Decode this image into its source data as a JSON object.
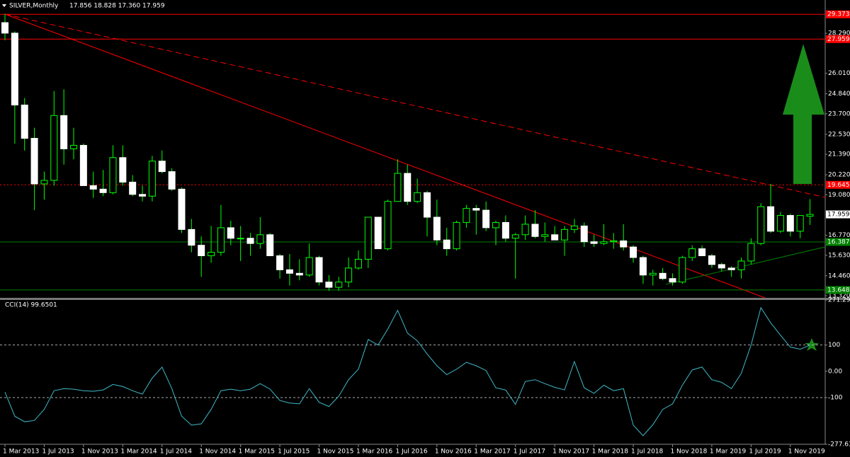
{
  "header": {
    "symbol": "SILVER,Monthly",
    "quote": "17.856 18.828 17.360 17.959"
  },
  "chart_data": [
    {
      "type": "candlestick",
      "up_color": "#00ff00",
      "down_color": "#ffffff",
      "wick_color": "#00ff00",
      "x": [
        "1 Mar 2013",
        null,
        null,
        null,
        "1 Jul 2013",
        null,
        null,
        null,
        "1 Nov 2013",
        null,
        null,
        null,
        "1 Mar 2014",
        null,
        null,
        null,
        "1 Jul 2014",
        null,
        null,
        null,
        "1 Nov 2014",
        null,
        null,
        null,
        "1 Mar 2015",
        null,
        null,
        null,
        "1 Jul 2015",
        null,
        null,
        null,
        "1 Nov 2015",
        null,
        null,
        null,
        "1 Mar 2016",
        null,
        null,
        null,
        "1 Jul 2016",
        null,
        null,
        null,
        "1 Nov 2016",
        null,
        null,
        null,
        "1 Mar 2017",
        null,
        null,
        null,
        "1 Jul 2017",
        null,
        null,
        null,
        "1 Nov 2017",
        null,
        null,
        null,
        "1 Mar 2018",
        null,
        null,
        null,
        "1 Jul 2018",
        null,
        null,
        null,
        "1 Nov 2018",
        null,
        null,
        null,
        "1 Mar 2019",
        null,
        null,
        null,
        "1 Jul 2019",
        null,
        null,
        null,
        "1 Nov 2019",
        null,
        null
      ],
      "ohlc": [
        [
          28.9,
          29.4,
          27.9,
          28.3
        ],
        [
          28.3,
          28.4,
          22.0,
          24.2
        ],
        [
          24.2,
          24.6,
          21.6,
          22.3
        ],
        [
          22.3,
          22.9,
          18.2,
          19.7
        ],
        [
          19.7,
          20.4,
          18.8,
          19.9
        ],
        [
          19.9,
          25.0,
          19.6,
          23.6
        ],
        [
          23.6,
          25.1,
          20.8,
          21.7
        ],
        [
          21.7,
          22.9,
          21.1,
          21.9
        ],
        [
          21.9,
          22.0,
          19.6,
          19.6
        ],
        [
          19.6,
          20.4,
          18.9,
          19.4
        ],
        [
          19.4,
          20.5,
          19.0,
          19.2
        ],
        [
          19.2,
          21.9,
          19.1,
          21.2
        ],
        [
          21.2,
          21.9,
          19.6,
          19.8
        ],
        [
          19.8,
          20.2,
          19.0,
          19.1
        ],
        [
          19.1,
          19.6,
          18.7,
          19.0
        ],
        [
          19.0,
          21.3,
          18.7,
          21.0
        ],
        [
          21.0,
          21.6,
          20.3,
          20.4
        ],
        [
          20.4,
          20.6,
          19.3,
          19.4
        ],
        [
          19.4,
          19.5,
          16.9,
          17.1
        ],
        [
          17.1,
          17.7,
          15.8,
          16.2
        ],
        [
          16.2,
          16.7,
          14.4,
          15.6
        ],
        [
          15.6,
          17.3,
          15.2,
          15.8
        ],
        [
          15.8,
          18.5,
          15.6,
          17.2
        ],
        [
          17.2,
          17.6,
          16.2,
          16.6
        ],
        [
          16.6,
          17.3,
          15.3,
          16.6
        ],
        [
          16.6,
          16.9,
          15.6,
          16.3
        ],
        [
          16.3,
          17.8,
          16.0,
          16.8
        ],
        [
          16.8,
          16.9,
          15.6,
          15.6
        ],
        [
          15.6,
          15.7,
          14.3,
          14.8
        ],
        [
          14.8,
          15.7,
          13.9,
          14.6
        ],
        [
          14.6,
          15.4,
          14.2,
          14.5
        ],
        [
          14.5,
          16.3,
          14.4,
          15.5
        ],
        [
          15.5,
          15.6,
          13.9,
          14.1
        ],
        [
          14.1,
          14.5,
          13.6,
          13.8
        ],
        [
          13.8,
          14.4,
          13.6,
          14.1
        ],
        [
          14.1,
          15.5,
          13.8,
          14.9
        ],
        [
          14.9,
          15.9,
          14.8,
          15.4
        ],
        [
          15.4,
          17.8,
          14.9,
          17.8
        ],
        [
          17.8,
          17.8,
          16.0,
          16.0
        ],
        [
          16.0,
          18.8,
          15.9,
          18.7
        ],
        [
          18.7,
          21.1,
          18.7,
          20.3
        ],
        [
          20.3,
          20.8,
          18.5,
          18.7
        ],
        [
          18.7,
          20.0,
          18.6,
          19.2
        ],
        [
          19.2,
          19.3,
          16.7,
          17.8
        ],
        [
          17.8,
          18.8,
          16.2,
          16.5
        ],
        [
          16.5,
          17.2,
          15.6,
          16.0
        ],
        [
          16.0,
          17.6,
          15.9,
          17.5
        ],
        [
          17.5,
          18.5,
          17.2,
          18.3
        ],
        [
          18.3,
          18.5,
          16.8,
          18.2
        ],
        [
          18.2,
          18.7,
          17.0,
          17.2
        ],
        [
          17.2,
          17.6,
          16.2,
          17.5
        ],
        [
          17.5,
          17.9,
          16.4,
          16.6
        ],
        [
          16.6,
          16.9,
          14.3,
          16.8
        ],
        [
          16.8,
          17.9,
          16.5,
          17.4
        ],
        [
          17.4,
          18.2,
          16.6,
          16.7
        ],
        [
          16.7,
          17.5,
          16.4,
          16.8
        ],
        [
          16.8,
          17.3,
          16.6,
          16.5
        ],
        [
          16.5,
          17.3,
          15.6,
          17.1
        ],
        [
          17.1,
          17.7,
          16.9,
          17.3
        ],
        [
          17.3,
          17.5,
          16.1,
          16.4
        ],
        [
          16.4,
          16.8,
          16.1,
          16.3
        ],
        [
          16.3,
          17.4,
          16.2,
          16.4
        ],
        [
          16.4,
          16.9,
          16.0,
          16.45
        ],
        [
          16.45,
          17.4,
          15.9,
          16.1
        ],
        [
          16.1,
          16.2,
          15.2,
          15.5
        ],
        [
          15.5,
          15.6,
          14.0,
          14.5
        ],
        [
          14.5,
          14.8,
          13.9,
          14.6
        ],
        [
          14.6,
          14.9,
          14.2,
          14.3
        ],
        [
          14.3,
          14.6,
          13.9,
          14.1
        ],
        [
          14.1,
          15.6,
          14.0,
          15.5
        ],
        [
          15.5,
          16.2,
          15.3,
          16.0
        ],
        [
          16.0,
          16.2,
          15.6,
          15.6
        ],
        [
          15.6,
          15.7,
          14.9,
          15.1
        ],
        [
          15.1,
          15.2,
          14.7,
          14.9
        ],
        [
          14.9,
          15.0,
          14.4,
          14.8
        ],
        [
          14.8,
          15.5,
          14.3,
          15.3
        ],
        [
          15.3,
          16.6,
          15.1,
          16.3
        ],
        [
          16.3,
          18.6,
          16.2,
          18.4
        ],
        [
          18.4,
          19.7,
          16.9,
          17.0
        ],
        [
          17.0,
          18.1,
          16.9,
          17.9
        ],
        [
          17.9,
          18.0,
          16.7,
          17.0
        ],
        [
          17.0,
          17.9,
          16.6,
          17.9
        ],
        [
          17.856,
          18.828,
          17.36,
          17.959
        ]
      ],
      "ylim": [
        13.2,
        30.19
      ],
      "yticks": [
        {
          "value": 28.29,
          "label": "28.290"
        },
        {
          "value": 26.01,
          "label": "26.010"
        },
        {
          "value": 24.84,
          "label": "24.840"
        },
        {
          "value": 23.7,
          "label": "23.700"
        },
        {
          "value": 22.53,
          "label": "22.530"
        },
        {
          "value": 21.39,
          "label": "21.390"
        },
        {
          "value": 20.22,
          "label": "20.220"
        },
        {
          "value": 19.08,
          "label": "19.080"
        },
        {
          "value": 16.77,
          "label": "16.770"
        },
        {
          "value": 15.63,
          "label": "15.630"
        },
        {
          "value": 14.46,
          "label": "14.460"
        },
        {
          "value": 13.32,
          "label": "13.320"
        }
      ],
      "levels": [
        {
          "value": 29.373,
          "color": "#ff0000",
          "dash": "none"
        },
        {
          "value": 27.959,
          "color": "#ff0000",
          "dash": "none"
        },
        {
          "value": 19.645,
          "color": "#ff0000",
          "dash": "2,3"
        },
        {
          "value": 16.387,
          "color": "#008000",
          "dash": "none"
        },
        {
          "value": 13.648,
          "color": "#008000",
          "dash": "none"
        }
      ],
      "last_price": 17.959
    },
    {
      "type": "line",
      "title": "CCI(14) 99.6501",
      "color": "#3fb8c8",
      "values": [
        -79,
        -171,
        -192,
        -187,
        -145,
        -74,
        -66,
        -68,
        -74,
        -76,
        -71,
        -50,
        -58,
        -74,
        -87,
        -26,
        16,
        -66,
        -171,
        -205,
        -200,
        -145,
        -74,
        -68,
        -74,
        -68,
        -47,
        -68,
        -111,
        -121,
        -124,
        -66,
        -118,
        -134,
        -95,
        -32,
        8,
        121,
        100,
        161,
        232,
        145,
        116,
        66,
        21,
        -13,
        8,
        34,
        21,
        3,
        -63,
        -71,
        -126,
        -39,
        -32,
        -47,
        -61,
        -71,
        37,
        -63,
        -84,
        -53,
        -74,
        -66,
        -205,
        -245,
        -203,
        -145,
        -124,
        -53,
        5,
        16,
        -32,
        -42,
        -66,
        -8,
        100,
        242,
        184,
        137,
        92,
        84,
        99.6501
      ],
      "ylim": [
        -277.632,
        271.293
      ],
      "yticks": [
        271.293,
        100,
        {
          "value": 0,
          "label": "0.00"
        },
        -100,
        -277.632
      ],
      "levels": [
        100,
        -100
      ]
    }
  ]
}
